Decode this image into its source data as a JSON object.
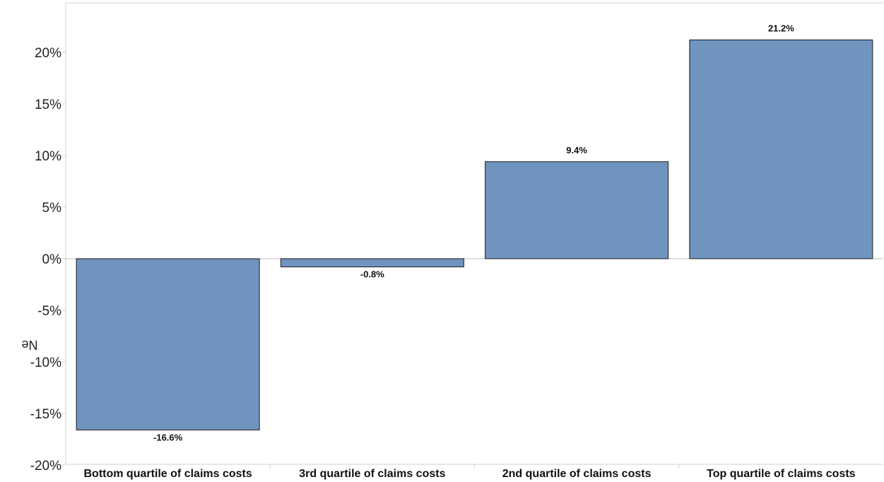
{
  "chart_data": {
    "type": "bar",
    "title": "",
    "xlabel": "",
    "ylabel": "Ne",
    "categories": [
      "Bottom quartile of claims costs",
      "3rd quartile of claims costs",
      "2nd quartile of claims costs",
      "Top quartile of claims costs"
    ],
    "values": [
      -16.6,
      -0.8,
      9.4,
      21.2
    ],
    "data_labels": [
      "-16.6%",
      "-0.8%",
      "9.4%",
      "21.2%"
    ],
    "ylim": [
      -20,
      24
    ],
    "yticks": [
      -20,
      -15,
      -10,
      -5,
      0,
      5,
      10,
      15,
      20
    ],
    "ytick_labels": [
      "-20%",
      "-15%",
      "-10%",
      "-5%",
      "0%",
      "5%",
      "10%",
      "15%",
      "20%"
    ],
    "grid": false,
    "legend": "none",
    "colors": {
      "bar": "#6f94be",
      "bar_edge": "#1a1a1a",
      "axis": "#d0d0d0",
      "zero_line": "#bdbdbd"
    }
  }
}
